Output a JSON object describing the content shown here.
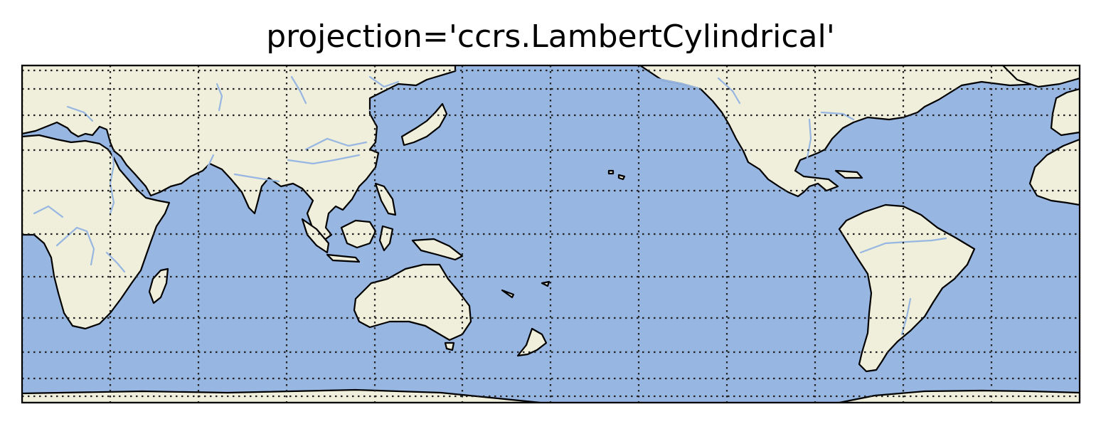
{
  "title": "projection='ccrs.LambertCylindrical'",
  "map": {
    "projection": "Lambert Cylindrical (equal-area)",
    "central_longitude": 180,
    "extent": "global",
    "features": [
      "land",
      "ocean",
      "coastlines",
      "rivers",
      "gridlines"
    ],
    "gridline_style": "dotted",
    "gridline_longitudes": [
      -150,
      -120,
      -90,
      -60,
      -30,
      0,
      30,
      60,
      90,
      120,
      150,
      180
    ],
    "gridline_latitudes": [
      -80,
      -60,
      -40,
      -20,
      0,
      20,
      40,
      60,
      80
    ],
    "colors": {
      "ocean": "#97b6e1",
      "land": "#efefdb",
      "coastline": "#000000",
      "river": "#97b6e1",
      "gridline": "#222222",
      "frame": "#000000"
    }
  }
}
